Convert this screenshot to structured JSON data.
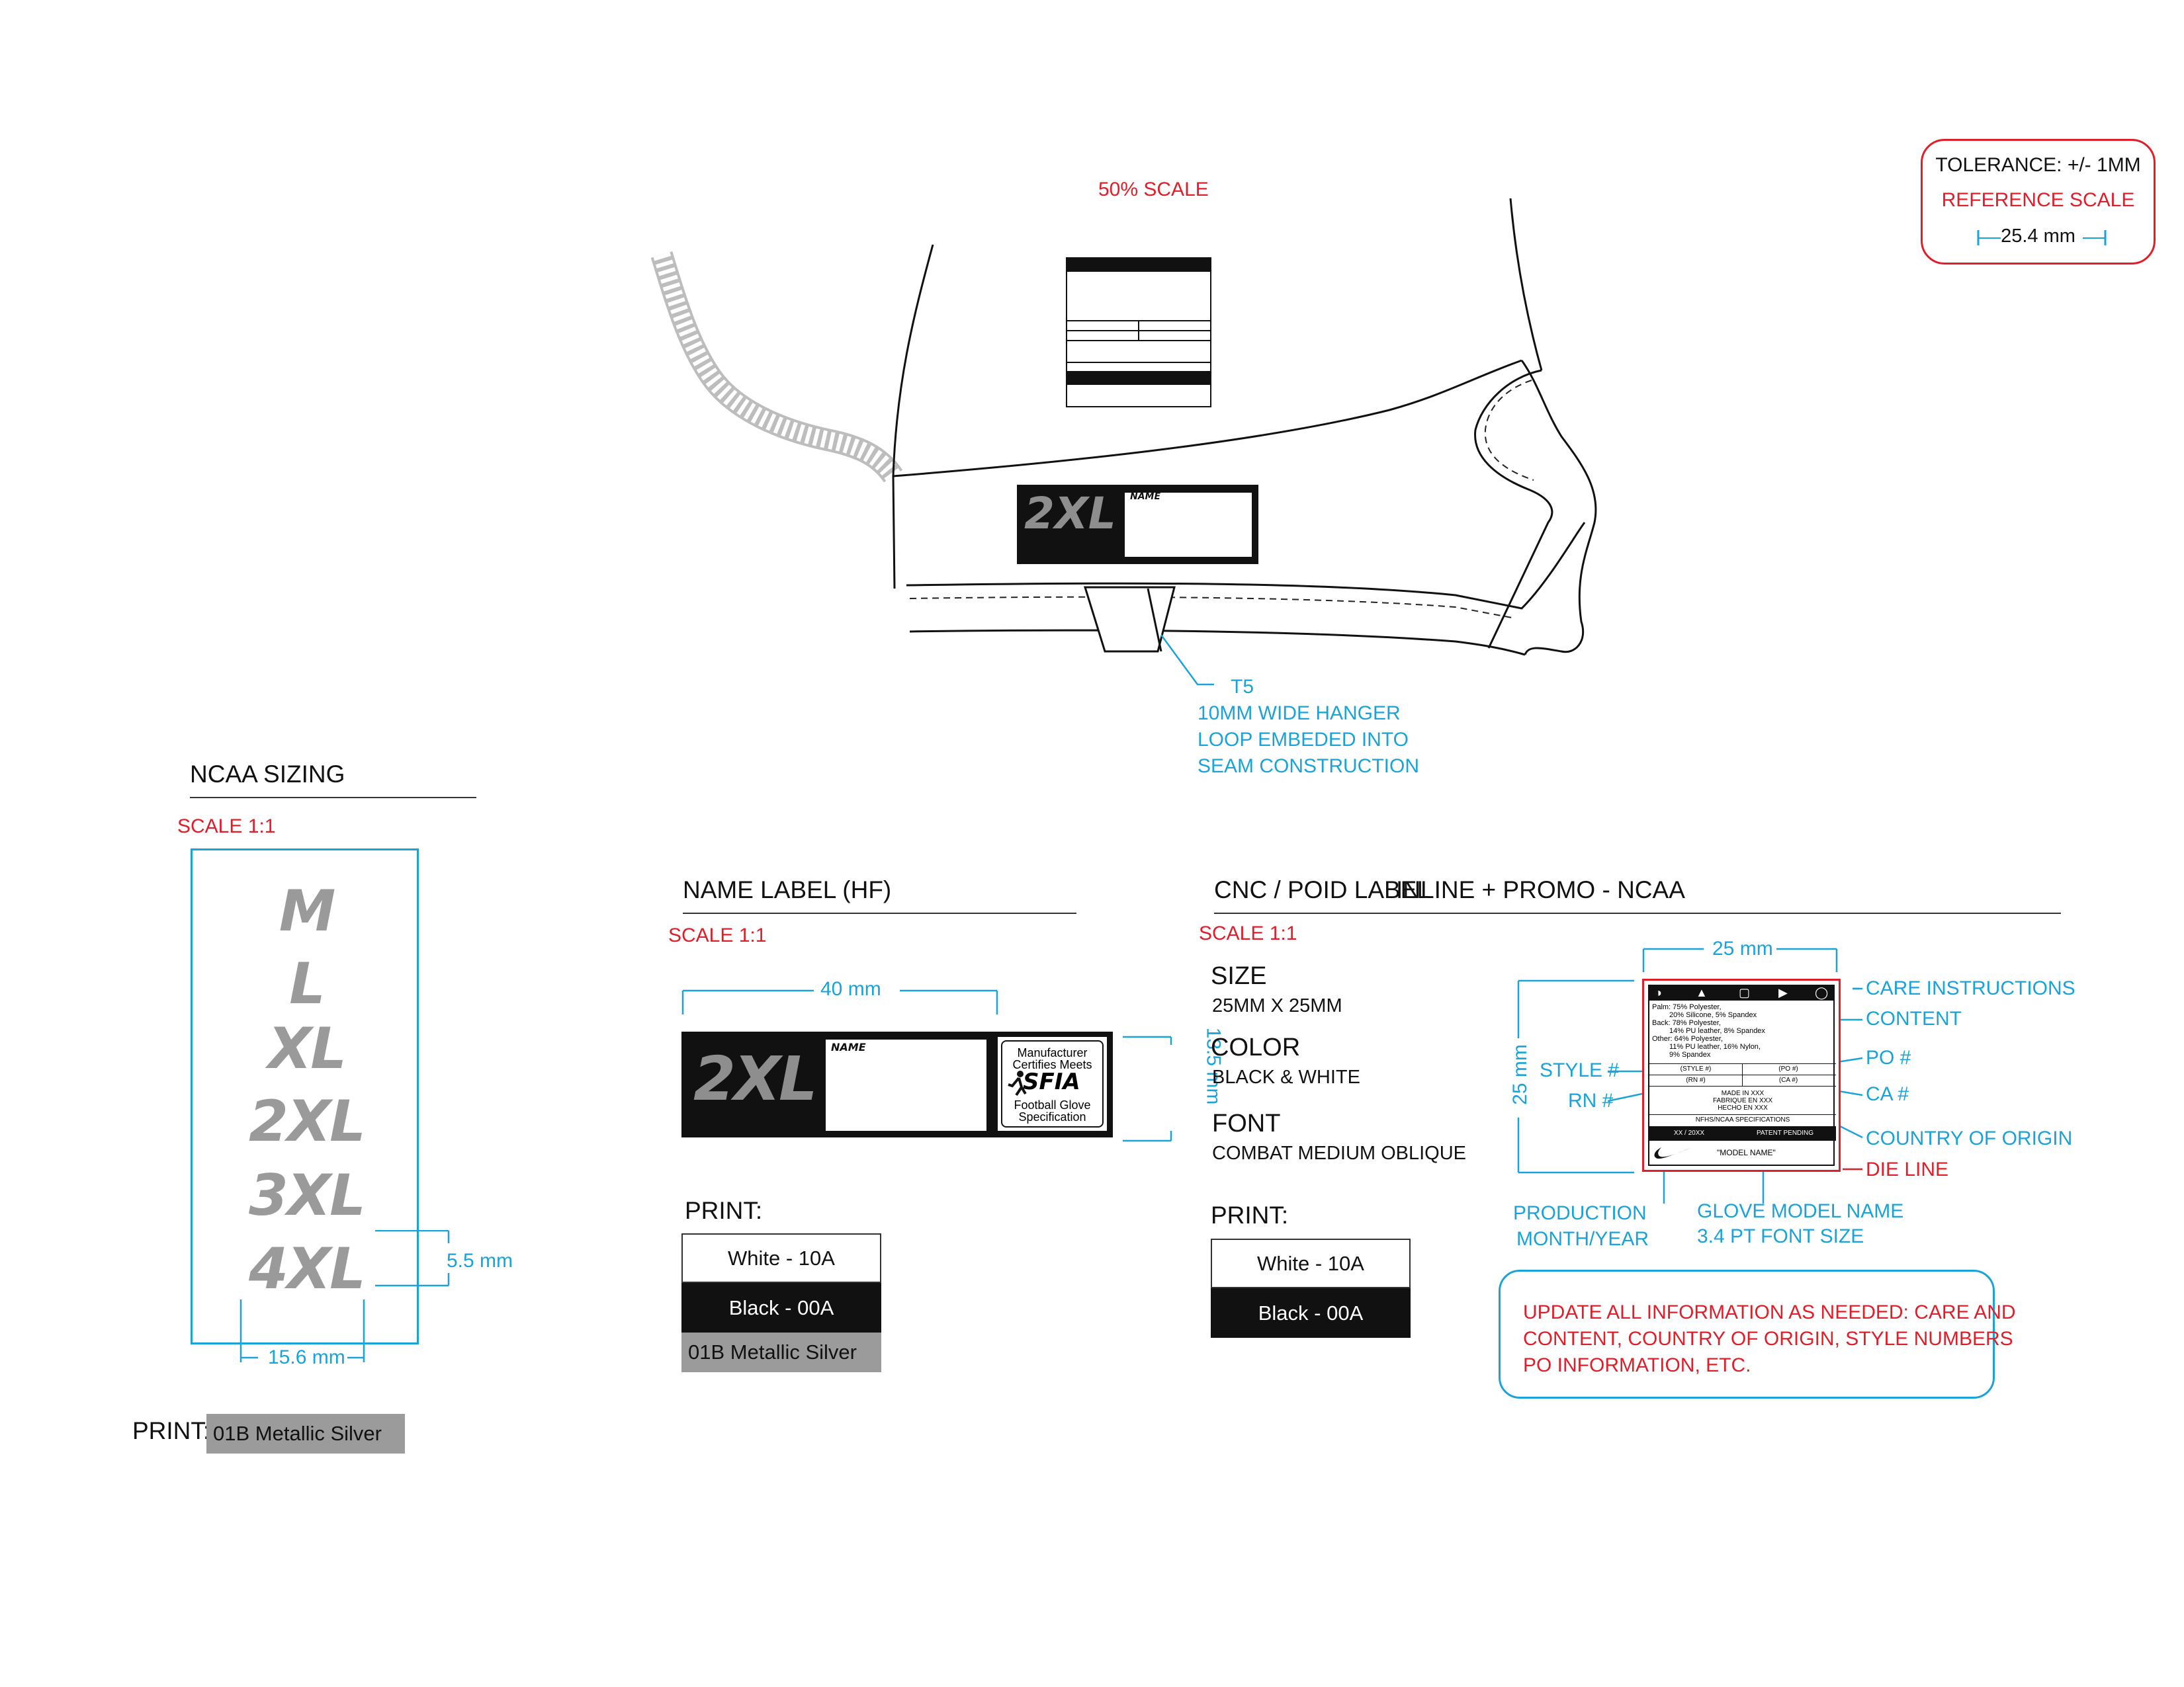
{
  "scale_note": "50% SCALE",
  "tolerance": {
    "title": "TOLERANCE: +/- 1MM",
    "subtitle": "REFERENCE SCALE",
    "ref": "25.4 mm"
  },
  "glove": {
    "hanger_callout": [
      "T5",
      "10MM WIDE HANGER",
      "LOOP EMBEDED INTO",
      "SEAM CONSTRUCTION"
    ],
    "size_patch": "2XL",
    "name_field": "NAME"
  },
  "ncaa_sizing": {
    "title": "NCAA SIZING",
    "scale": "SCALE 1:1",
    "sizes": [
      "M",
      "L",
      "XL",
      "2XL",
      "3XL",
      "4XL"
    ],
    "height_dim": "5.5 mm",
    "width_dim": "15.6 mm",
    "print_label": "PRINT:",
    "print_value": "01B Metallic Silver"
  },
  "name_label": {
    "title": "NAME LABEL (HF)",
    "scale": "SCALE 1:1",
    "width_dim": "40 mm",
    "height_dim": "13.5 mm",
    "size_text": "2XL",
    "name_field": "NAME",
    "sfia_lines": [
      "Manufacturer",
      "Certifies Meets",
      "SFIA",
      "Football Glove",
      "Specification"
    ],
    "print_label": "PRINT:",
    "colors": [
      "White - 10A",
      "Black - 00A",
      "01B Metallic Silver"
    ]
  },
  "cnc_label": {
    "title": "CNC / POID LABEL",
    "title_overlap": "INLINE + PROMO - NCAA",
    "scale": "SCALE 1:1",
    "size_heading": "SIZE",
    "size_value": "25MM X 25MM",
    "color_heading": "COLOR",
    "color_value": "BLACK & WHITE",
    "font_heading": "FONT",
    "font_value": "COMBAT MEDIUM OBLIQUE",
    "print_label": "PRINT:",
    "colors": [
      "White - 10A",
      "Black - 00A"
    ],
    "width_dim": "25 mm",
    "height_dim": "25 mm",
    "callouts_right": [
      "CARE INSTRUCTIONS",
      "CONTENT",
      "PO #",
      "CA #",
      "COUNTRY OF ORIGIN",
      "DIE LINE"
    ],
    "callouts_left": [
      "STYLE #",
      "RN #"
    ],
    "production": [
      "PRODUCTION",
      "MONTH/YEAR"
    ],
    "model_name_note": [
      "GLOVE MODEL NAME",
      "3.4 PT FONT SIZE"
    ]
  },
  "care_label": {
    "content_lines": [
      "Palm: 75% Polyester,",
      "20% Silicone, 5% Spandex",
      "Back: 78% Polyester,",
      "14% PU leather, 8% Spandex",
      "Other: 64% Polyester,",
      "11% PU leather, 16% Nylon,",
      "9% Spandex"
    ],
    "style": "(STYLE #)",
    "po": "(PO #)",
    "rn": "(RN #)",
    "ca": "(CA #)",
    "origin": [
      "MADE IN XXX",
      "FABRIQUE EN XXX",
      "HECHO EN XXX"
    ],
    "spec": "NFHS/NCAA SPECIFICATIONS",
    "date": "XX / 20XX",
    "patent": "PATENT PENDING",
    "model": "\"MODEL NAME\""
  },
  "update_note": [
    "UPDATE ALL INFORMATION AS NEEDED: CARE AND",
    "CONTENT, COUNTRY OF ORIGIN, STYLE NUMBERS",
    "PO INFORMATION, ETC."
  ],
  "colors": {
    "accent_blue": "#1aa3d9",
    "accent_red": "#e01e2a",
    "metallic_silver": "#9b9b9b",
    "black": "#111111"
  }
}
